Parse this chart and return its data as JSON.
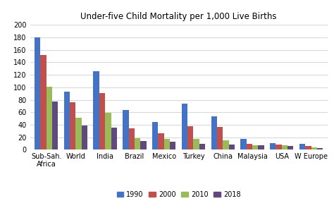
{
  "title": "Under-five Child Mortality per 1,000 Live Births",
  "categories": [
    "Sub-Sah.\nAfrica",
    "World",
    "India",
    "Brazil",
    "Mexico",
    "Turkey",
    "China",
    "Malaysia",
    "USA",
    "W Europe"
  ],
  "series": {
    "1990": [
      180,
      93,
      126,
      64,
      45,
      74,
      54,
      17,
      11,
      10
    ],
    "2000": [
      152,
      76,
      91,
      34,
      26,
      38,
      37,
      10,
      8,
      6
    ],
    "2010": [
      101,
      51,
      59,
      18,
      17,
      17,
      15,
      7,
      7,
      4
    ],
    "2018": [
      77,
      39,
      36,
      14,
      13,
      10,
      8,
      7,
      6,
      3
    ]
  },
  "colors": {
    "1990": "#4472C4",
    "2000": "#C0504D",
    "2010": "#9BBB59",
    "2018": "#604A7B"
  },
  "ylim": [
    0,
    200
  ],
  "yticks": [
    0,
    20,
    40,
    60,
    80,
    100,
    120,
    140,
    160,
    180,
    200
  ],
  "legend_labels": [
    "1990",
    "2000",
    "2010",
    "2018"
  ],
  "background_color": "#ffffff",
  "grid_color": "#d9d9d9"
}
